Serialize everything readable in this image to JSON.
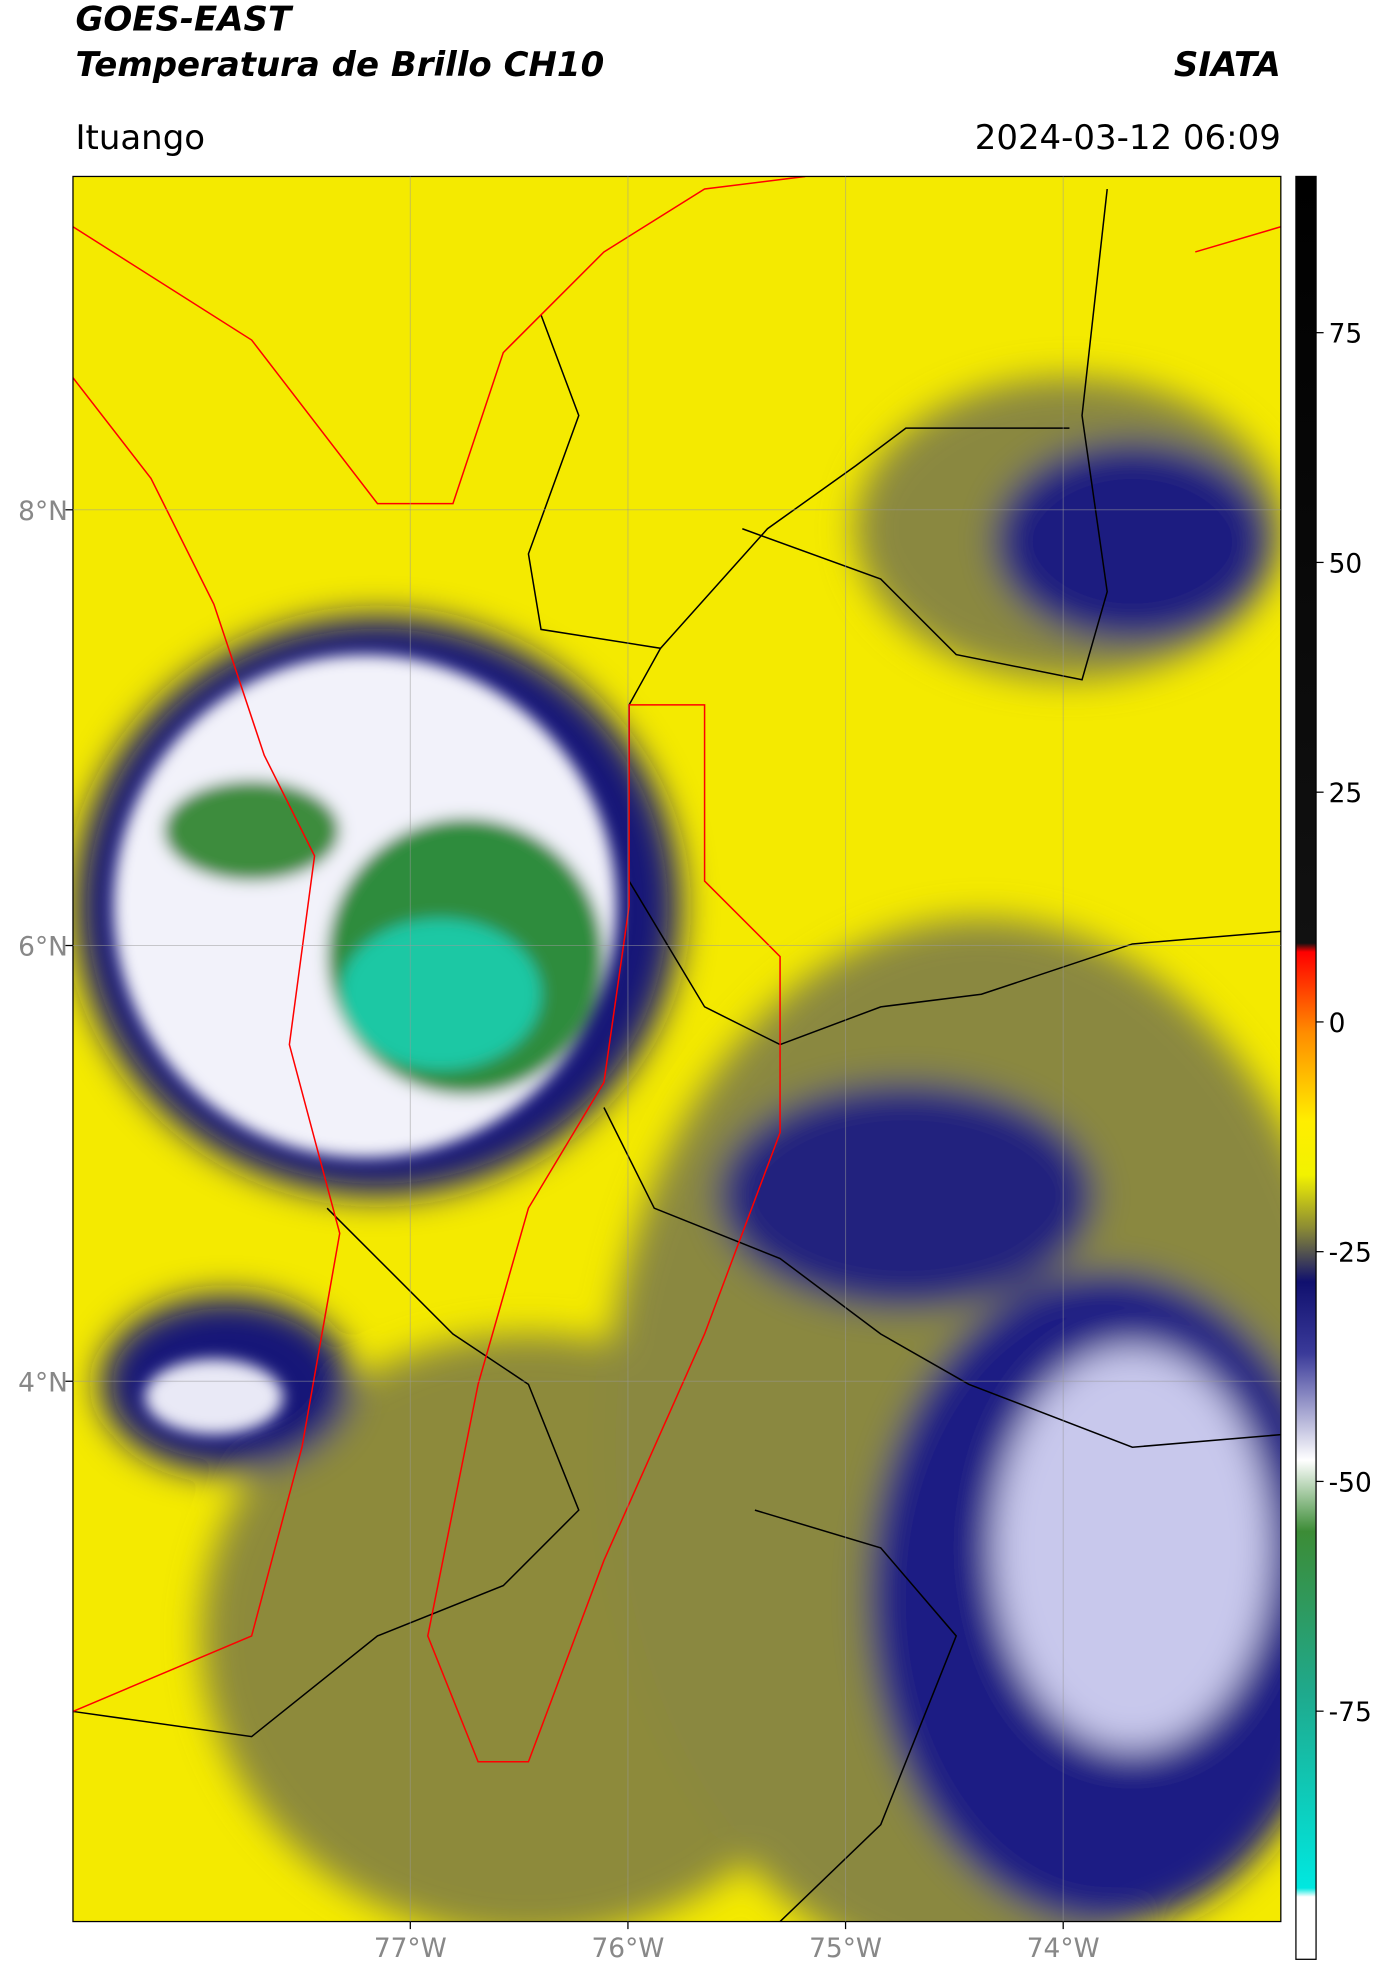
{
  "header": {
    "title": "GOES-EAST",
    "subtitle": "Temperatura de Brillo CH10",
    "brand": "SIATA",
    "location": "Ituango",
    "timestamp": "2024-03-12 06:09"
  },
  "map": {
    "xlim": [
      -78.55,
      -73.0
    ],
    "ylim": [
      1.52,
      9.53
    ],
    "xticks": [
      {
        "value": -77,
        "label": "77°W"
      },
      {
        "value": -76,
        "label": "76°W"
      },
      {
        "value": -75,
        "label": "75°W"
      },
      {
        "value": -74,
        "label": "74°W"
      }
    ],
    "yticks": [
      {
        "value": 8,
        "label": "8°N"
      },
      {
        "value": 6,
        "label": "6°N"
      },
      {
        "value": 4,
        "label": "4°N"
      }
    ]
  },
  "colorbar": {
    "lim": [
      -102,
      92
    ],
    "ticks": [
      75,
      50,
      25,
      0,
      -25,
      -50,
      -75
    ]
  }
}
